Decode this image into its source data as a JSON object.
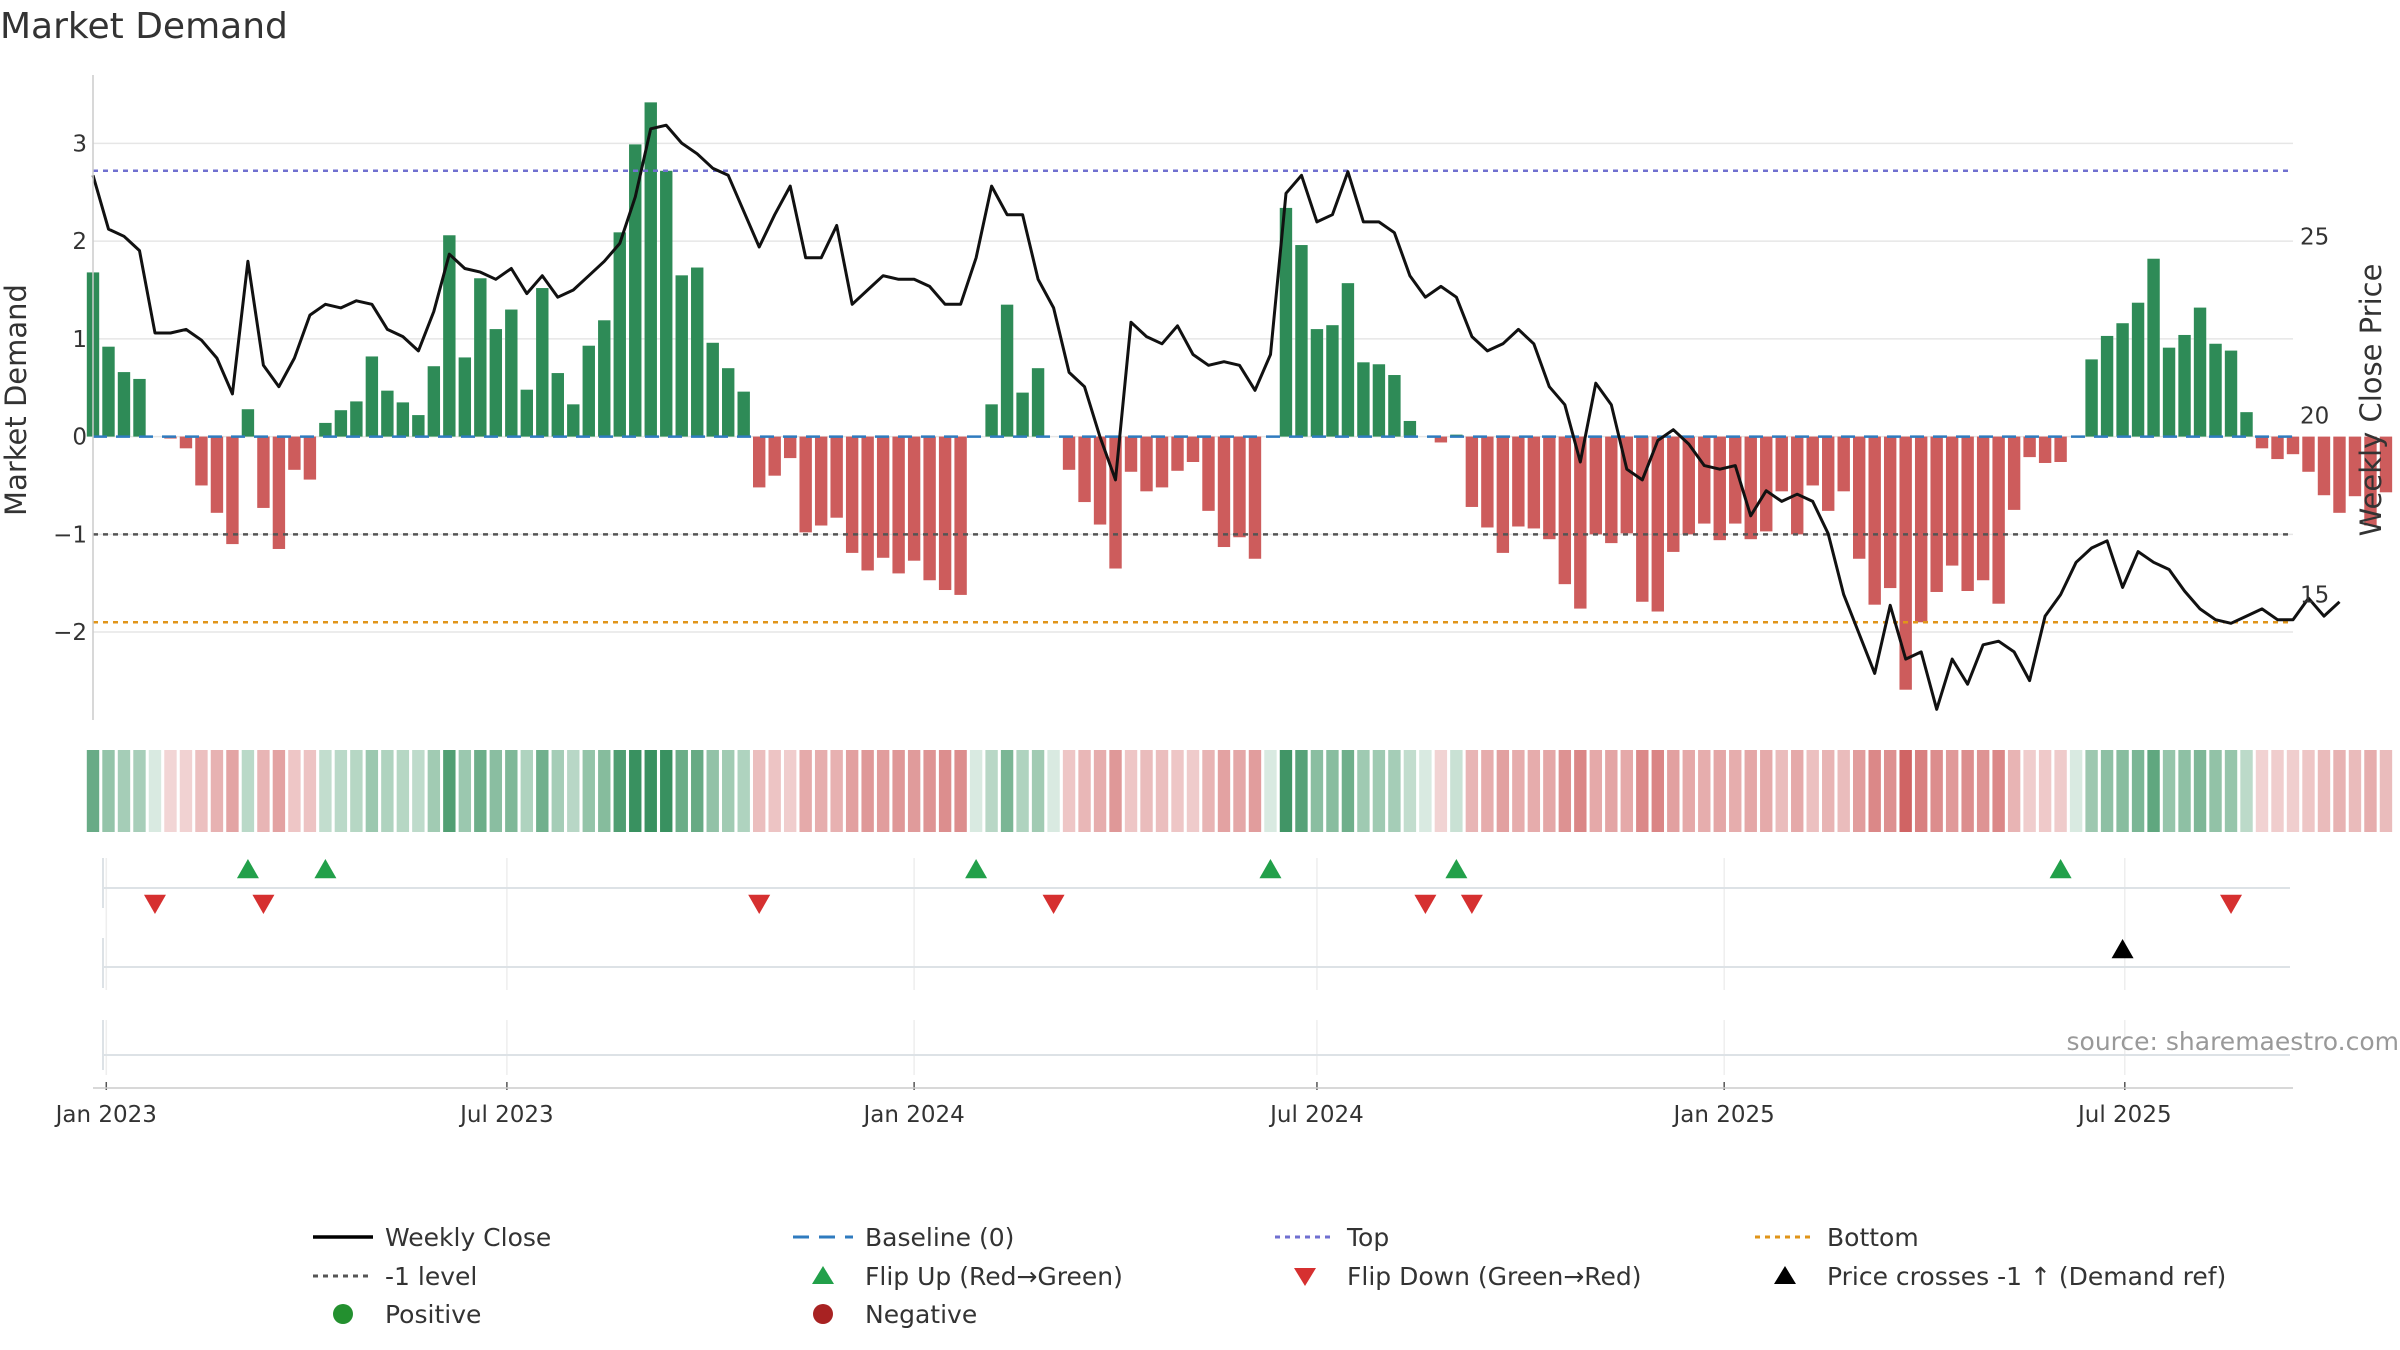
{
  "chart_data": {
    "type": "bar",
    "title": "Market Demand",
    "ylabel_left": "Market Demand",
    "ylabel_right": "Weekly Close Price",
    "ylim_left": [
      -2.9,
      3.7
    ],
    "ylim_right": [
      11.5,
      29.5
    ],
    "yticks_left": [
      {
        "v": 3,
        "label": "3"
      },
      {
        "v": 2,
        "label": "2"
      },
      {
        "v": 1,
        "label": "1"
      },
      {
        "v": 0,
        "label": "0"
      },
      {
        "v": -1,
        "label": "−1"
      },
      {
        "v": -2,
        "label": "−2"
      }
    ],
    "yticks_right": [
      {
        "v": 25,
        "label": "25"
      },
      {
        "v": 20,
        "label": "20"
      },
      {
        "v": 15,
        "label": "15"
      }
    ],
    "xrange": [
      "2022-12-26",
      "2025-09-15"
    ],
    "xticks": [
      {
        "date": "2023-01-01",
        "label": "Jan 2023"
      },
      {
        "date": "2023-07-01",
        "label": "Jul 2023"
      },
      {
        "date": "2024-01-01",
        "label": "Jan 2024"
      },
      {
        "date": "2024-07-01",
        "label": "Jul 2024"
      },
      {
        "date": "2025-01-01",
        "label": "Jan 2025"
      },
      {
        "date": "2025-07-01",
        "label": "Jul 2025"
      }
    ],
    "start_week": "2022-12-26",
    "demand": [
      1.68,
      0.92,
      0.66,
      0.59,
      0.0,
      -0.02,
      -0.12,
      -0.5,
      -0.78,
      -1.1,
      0.28,
      -0.73,
      -1.15,
      -0.34,
      -0.44,
      0.14,
      0.27,
      0.36,
      0.82,
      0.47,
      0.35,
      0.22,
      0.72,
      2.06,
      0.81,
      1.62,
      1.1,
      1.3,
      0.48,
      1.52,
      0.65,
      0.33,
      0.93,
      1.19,
      2.09,
      2.99,
      3.42,
      2.72,
      1.65,
      1.73,
      0.96,
      0.7,
      0.46,
      -0.52,
      -0.4,
      -0.22,
      -0.98,
      -0.91,
      -0.83,
      -1.19,
      -1.37,
      -1.24,
      -1.4,
      -1.27,
      -1.47,
      -1.57,
      -1.62,
      0.0,
      0.33,
      1.35,
      0.45,
      0.7,
      0.0,
      -0.34,
      -0.67,
      -0.9,
      -1.35,
      -0.36,
      -0.56,
      -0.52,
      -0.35,
      -0.26,
      -0.76,
      -1.13,
      -1.03,
      -1.25,
      0.0,
      2.34,
      1.96,
      1.1,
      1.14,
      1.57,
      0.76,
      0.74,
      0.63,
      0.16,
      0.0,
      -0.06,
      0.02,
      -0.72,
      -0.93,
      -1.19,
      -0.92,
      -0.94,
      -1.05,
      -1.51,
      -1.76,
      -1.0,
      -1.09,
      -0.99,
      -1.69,
      -1.79,
      -1.18,
      -1.0,
      -0.89,
      -1.06,
      -0.89,
      -1.05,
      -0.97,
      -0.56,
      -1.0,
      -0.5,
      -0.76,
      -0.56,
      -1.25,
      -1.72,
      -1.55,
      -2.59,
      -1.9,
      -1.59,
      -1.32,
      -1.58,
      -1.47,
      -1.71,
      -0.75,
      -0.21,
      -0.27,
      -0.26,
      0.0,
      0.79,
      1.03,
      1.16,
      1.37,
      1.82,
      0.91,
      1.04,
      1.32,
      0.95,
      0.88,
      0.25,
      -0.12,
      -0.23,
      -0.18,
      -0.36,
      -0.6,
      -0.78,
      -0.61,
      -0.91,
      -0.57
    ],
    "close": [
      26.7,
      25.2,
      25.0,
      24.6,
      22.3,
      22.3,
      22.4,
      22.1,
      21.6,
      20.6,
      24.3,
      21.4,
      20.8,
      21.6,
      22.8,
      23.1,
      23.0,
      23.2,
      23.1,
      22.4,
      22.2,
      21.8,
      22.9,
      24.5,
      24.1,
      24.0,
      23.8,
      24.1,
      23.4,
      23.9,
      23.3,
      23.5,
      23.9,
      24.3,
      24.8,
      26.1,
      28.0,
      28.1,
      27.6,
      27.3,
      26.9,
      26.7,
      25.7,
      24.7,
      25.6,
      26.4,
      24.4,
      24.4,
      25.3,
      23.1,
      23.5,
      23.9,
      23.8,
      23.8,
      23.6,
      23.1,
      23.1,
      24.4,
      26.4,
      25.6,
      25.6,
      23.8,
      23.0,
      21.2,
      20.8,
      19.4,
      18.2,
      22.6,
      22.2,
      22.0,
      22.5,
      21.7,
      21.4,
      21.5,
      21.4,
      20.7,
      21.7,
      26.2,
      26.7,
      25.4,
      25.6,
      26.8,
      25.4,
      25.4,
      25.1,
      23.9,
      23.3,
      23.6,
      23.3,
      22.2,
      21.8,
      22.0,
      22.4,
      22.0,
      20.8,
      20.3,
      18.7,
      20.9,
      20.3,
      18.5,
      18.2,
      19.3,
      19.6,
      19.2,
      18.6,
      18.5,
      18.6,
      17.2,
      17.9,
      17.6,
      17.8,
      17.6,
      16.7,
      15.0,
      13.9,
      12.8,
      14.7,
      13.2,
      13.4,
      11.8,
      13.2,
      12.5,
      13.6,
      13.7,
      13.4,
      12.6,
      14.4,
      15.0,
      15.9,
      16.3,
      16.5,
      15.2,
      16.2,
      15.9,
      15.7,
      15.1,
      14.6,
      14.3,
      14.2,
      14.4,
      14.6,
      14.3,
      14.3,
      14.9,
      14.4,
      14.8
    ],
    "reference_lines": [
      {
        "name": "Top",
        "value": 2.72,
        "color": "#7070d0"
      },
      {
        "name": "Bottom",
        "value": -1.9,
        "color": "#e0951a"
      },
      {
        "name": "-1 level",
        "value": -1,
        "color": "#555555"
      },
      {
        "name": "Baseline (0)",
        "value": 0,
        "color": "#2f7bbf"
      }
    ],
    "flip_up_weeks": [
      10,
      15,
      57,
      76,
      88,
      127
    ],
    "flip_down_weeks": [
      4,
      11,
      43,
      62,
      86,
      89,
      138
    ],
    "price_cross_weeks": [
      131
    ],
    "legend": [
      {
        "label": "Weekly Close",
        "marker": "line",
        "color": "#000000"
      },
      {
        "label": "Baseline (0)",
        "marker": "dash",
        "color": "#2f7bbf"
      },
      {
        "label": "Top",
        "marker": "dot",
        "color": "#7070d0"
      },
      {
        "label": "Bottom",
        "marker": "dot",
        "color": "#e0951a"
      },
      {
        "label": "-1 level",
        "marker": "dot",
        "color": "#555555"
      },
      {
        "label": "Flip Up (Red→Green)",
        "marker": "triangle-up",
        "color": "#22a04a"
      },
      {
        "label": "Flip Down (Green→Red)",
        "marker": "triangle-down",
        "color": "#d63030"
      },
      {
        "label": "Price crosses -1 ↑ (Demand ref)",
        "marker": "triangle-up",
        "color": "#000000"
      },
      {
        "label": "Positive",
        "marker": "circle",
        "color": "#23902f"
      },
      {
        "label": "Negative",
        "marker": "circle",
        "color": "#a82222"
      }
    ],
    "colors": {
      "positive": "#2e8b57",
      "negative": "#cd5c5c",
      "price": "#111111",
      "grid": "#e6e6e6",
      "axis": "#cccccc"
    }
  },
  "source": "source: sharemaestro.com"
}
